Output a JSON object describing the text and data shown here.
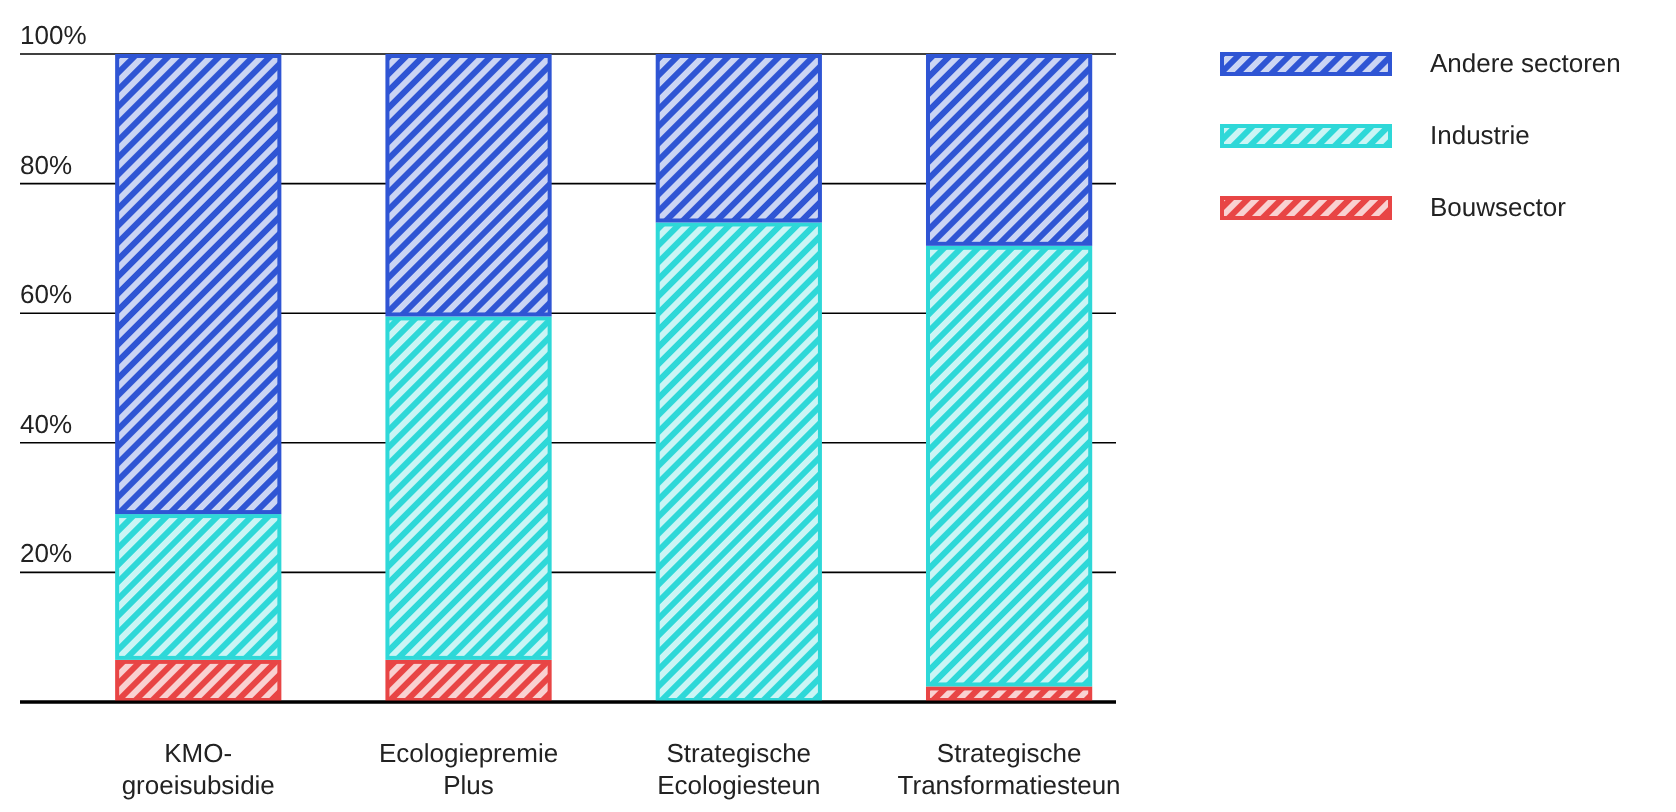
{
  "chart_data": {
    "type": "bar",
    "stacked": true,
    "categories": [
      "KMO-groeisubsidie",
      "Ecologiepremie Plus",
      "Strategische Ecologiesteun",
      "Strategische Transformatiesteun"
    ],
    "series": [
      {
        "name": "Bouwsector",
        "color": "#e84545",
        "values": [
          6.5,
          6.5,
          0,
          2.4
        ]
      },
      {
        "name": "Industrie",
        "color": "#2ed8d8",
        "values": [
          22.5,
          53,
          74,
          68
        ]
      },
      {
        "name": "Andere sectoren",
        "color": "#2f55d4",
        "values": [
          71,
          40.5,
          26,
          29.6
        ]
      }
    ],
    "ylim": [
      0,
      100
    ],
    "yticks": [
      {
        "value": 0,
        "label": null
      },
      {
        "value": 20,
        "label": "20%"
      },
      {
        "value": 40,
        "label": "40%"
      },
      {
        "value": 60,
        "label": "60%"
      },
      {
        "value": 80,
        "label": "80%"
      },
      {
        "value": 100,
        "label": "100%"
      }
    ],
    "grid": "y",
    "legend": "top right"
  }
}
